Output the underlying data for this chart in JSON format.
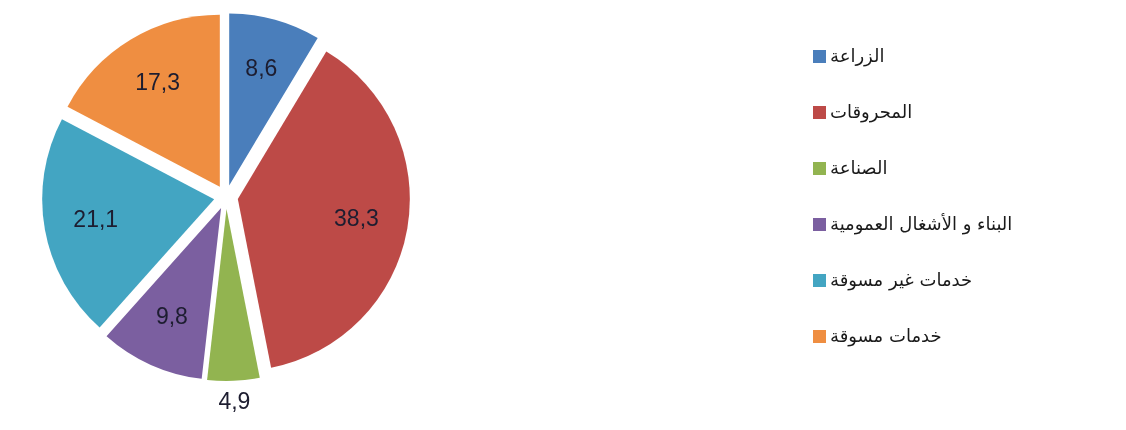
{
  "chart_data": {
    "type": "pie",
    "categories": [
      "الزراعة",
      "المحروقات",
      "الصناعة",
      "البناء و الأشغال العمومية",
      "خدمات غير مسوقة",
      "خدمات مسوقة"
    ],
    "values": [
      8.6,
      38.3,
      4.9,
      9.8,
      21.1,
      17.3
    ],
    "colors": [
      "#4a7ebb",
      "#bd4a47",
      "#92b450",
      "#7b5fa0",
      "#43a5c2",
      "#ef8e41"
    ],
    "value_labels": [
      "8,6",
      "38,3",
      "4,9",
      "9,8",
      "21,1",
      "17,3"
    ],
    "legend": "right"
  }
}
